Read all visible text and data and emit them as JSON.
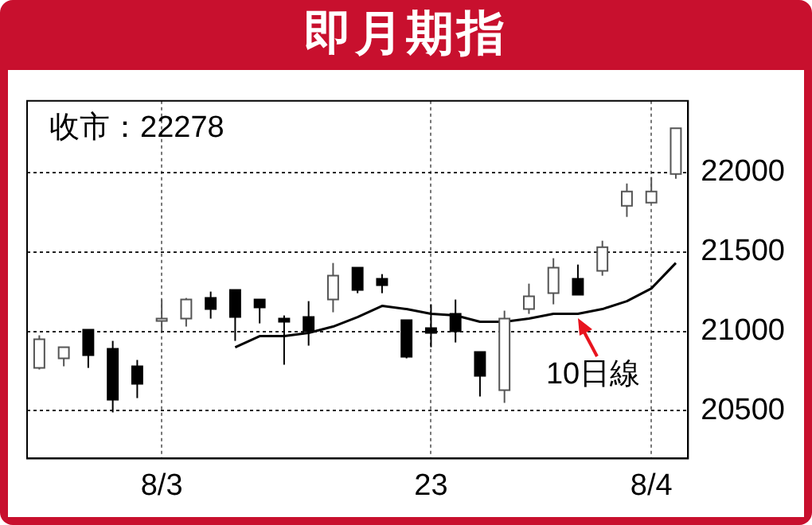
{
  "chart_data": {
    "type": "candlestick",
    "title": "即月期指",
    "categories": [
      null,
      null,
      null,
      null,
      null,
      "8/3",
      null,
      null,
      null,
      null,
      null,
      null,
      null,
      null,
      null,
      null,
      "23",
      null,
      null,
      null,
      null,
      null,
      null,
      null,
      null,
      "8/4",
      null
    ],
    "ohlc": [
      [
        20770,
        20975,
        20760,
        20950
      ],
      [
        20830,
        20900,
        20780,
        20900
      ],
      [
        21010,
        21010,
        20770,
        20850
      ],
      [
        20890,
        20940,
        20490,
        20570
      ],
      [
        20780,
        20820,
        20580,
        20670
      ],
      [
        21080,
        21200,
        21000,
        21080
      ],
      [
        21080,
        21210,
        21030,
        21200
      ],
      [
        21210,
        21250,
        21080,
        21140
      ],
      [
        21260,
        21260,
        20940,
        21090
      ],
      [
        21200,
        21200,
        21050,
        21150
      ],
      [
        21080,
        21100,
        20790,
        21060
      ],
      [
        21090,
        21190,
        20910,
        21000
      ],
      [
        21200,
        21430,
        21120,
        21350
      ],
      [
        21400,
        21400,
        21240,
        21260
      ],
      [
        21330,
        21360,
        21240,
        21290
      ],
      [
        21070,
        21070,
        20830,
        20840
      ],
      [
        21020,
        21170,
        20900,
        20990
      ],
      [
        21110,
        21200,
        20930,
        21000
      ],
      [
        20870,
        20870,
        20590,
        20720
      ],
      [
        20630,
        21130,
        20550,
        21080
      ],
      [
        21140,
        21300,
        21110,
        21220
      ],
      [
        21240,
        21460,
        21170,
        21400
      ],
      [
        21330,
        21420,
        21230,
        21230
      ],
      [
        21380,
        21570,
        21350,
        21530
      ],
      [
        21790,
        21930,
        21720,
        21880
      ],
      [
        21810,
        21970,
        21810,
        21880
      ],
      [
        21990,
        22278,
        21960,
        22278
      ]
    ],
    "series": [
      {
        "type": "line",
        "name": "10日線",
        "color": "#000000",
        "values": [
          null,
          null,
          null,
          null,
          null,
          null,
          null,
          null,
          20900,
          20970,
          20970,
          20990,
          21030,
          21090,
          21160,
          21140,
          21110,
          21100,
          21060,
          21060,
          21080,
          21110,
          21110,
          21140,
          21190,
          21270,
          21430
        ]
      }
    ],
    "ylim": [
      20200,
      22450
    ],
    "yticks": [
      20500,
      21000,
      21500,
      22000
    ],
    "grid": true,
    "legend": false,
    "marker": "none",
    "annotations": [
      "收市：22278"
    ]
  }
}
